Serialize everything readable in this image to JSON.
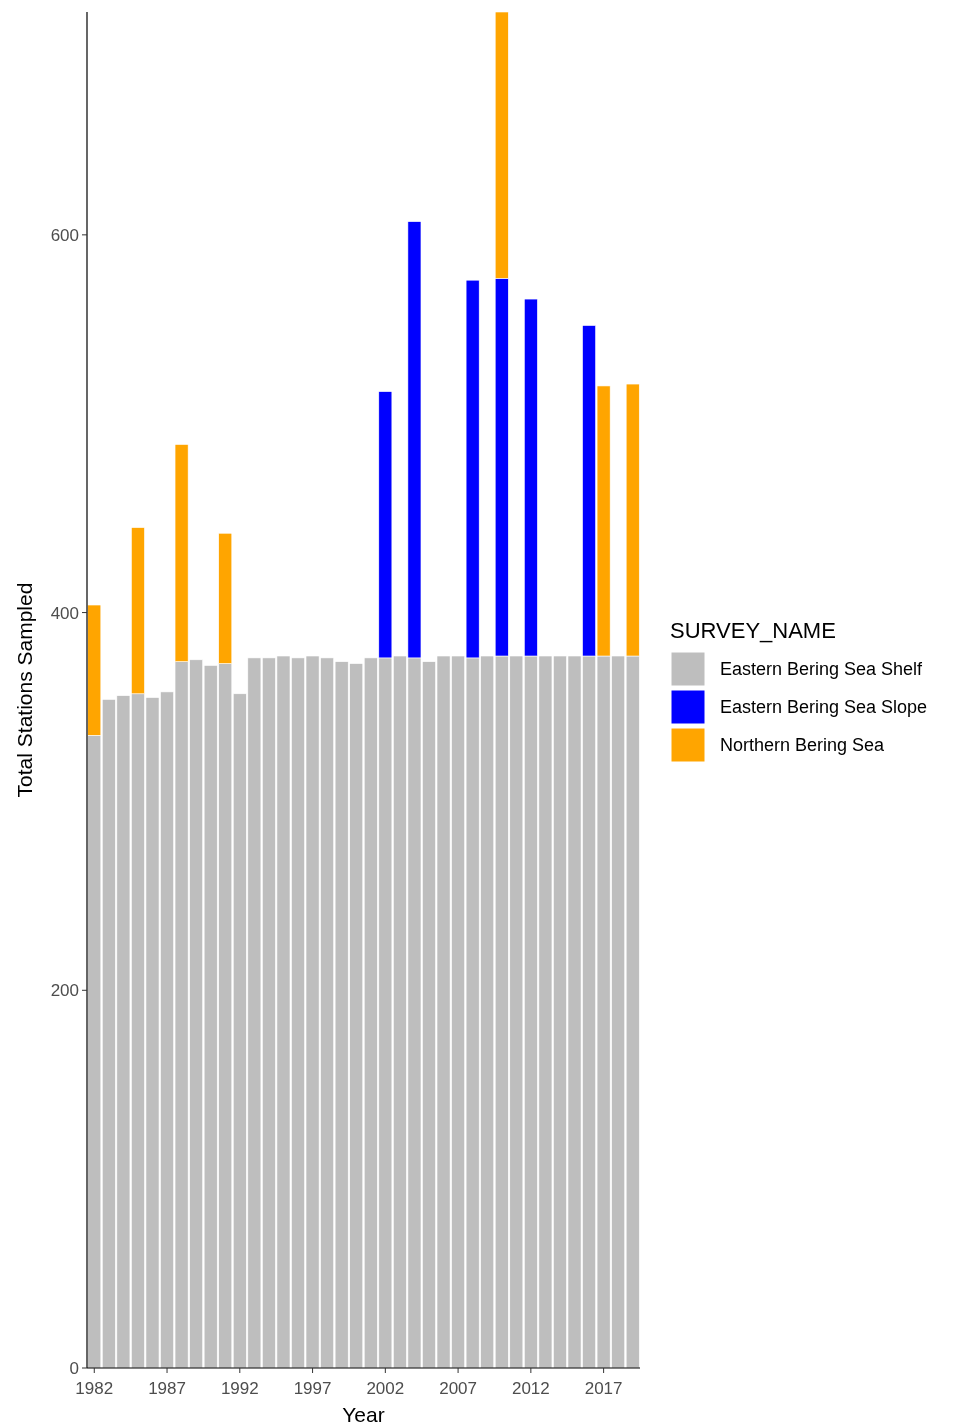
{
  "chart_data": {
    "type": "bar",
    "stacked": true,
    "xlabel": "Year",
    "ylabel": "Total Stations Sampled",
    "legend_title": "SURVEY_NAME",
    "legend": "right",
    "grid": false,
    "x": [
      1982,
      1983,
      1984,
      1985,
      1986,
      1987,
      1988,
      1989,
      1990,
      1991,
      1992,
      1993,
      1994,
      1995,
      1996,
      1997,
      1998,
      1999,
      2000,
      2001,
      2002,
      2003,
      2004,
      2005,
      2006,
      2007,
      2008,
      2009,
      2010,
      2011,
      2012,
      2013,
      2014,
      2015,
      2016,
      2017,
      2018,
      2019
    ],
    "xlim": [
      1981.5,
      2019.5
    ],
    "xticks": [
      1982,
      1987,
      1992,
      1997,
      2002,
      2007,
      2012,
      2017
    ],
    "ylim": [
      0,
      718
    ],
    "yticks": [
      0,
      200,
      400,
      600
    ],
    "series": [
      {
        "name": "Eastern Bering Sea Shelf",
        "color": "#bebebe",
        "values": [
          335,
          354,
          356,
          357,
          355,
          358,
          374,
          375,
          372,
          373,
          357,
          376,
          376,
          377,
          376,
          377,
          376,
          374,
          373,
          376,
          376,
          377,
          376,
          374,
          377,
          377,
          376,
          377,
          377,
          377,
          377,
          377,
          377,
          377,
          377,
          377,
          377,
          377
        ]
      },
      {
        "name": "Eastern Bering Sea Slope",
        "color": "#0000ff",
        "values": [
          null,
          null,
          null,
          null,
          null,
          null,
          null,
          null,
          null,
          null,
          null,
          null,
          null,
          null,
          null,
          null,
          null,
          null,
          null,
          null,
          141,
          null,
          231,
          null,
          null,
          null,
          200,
          null,
          200,
          null,
          189,
          null,
          null,
          null,
          175,
          null,
          null,
          null
        ]
      },
      {
        "name": "Northern Bering Sea",
        "color": "#ffa500",
        "values": [
          69,
          null,
          null,
          88,
          null,
          null,
          115,
          null,
          null,
          69,
          null,
          null,
          null,
          null,
          null,
          null,
          null,
          null,
          null,
          null,
          null,
          null,
          null,
          null,
          null,
          null,
          null,
          null,
          141,
          null,
          null,
          null,
          null,
          null,
          null,
          143,
          null,
          144
        ]
      }
    ]
  }
}
